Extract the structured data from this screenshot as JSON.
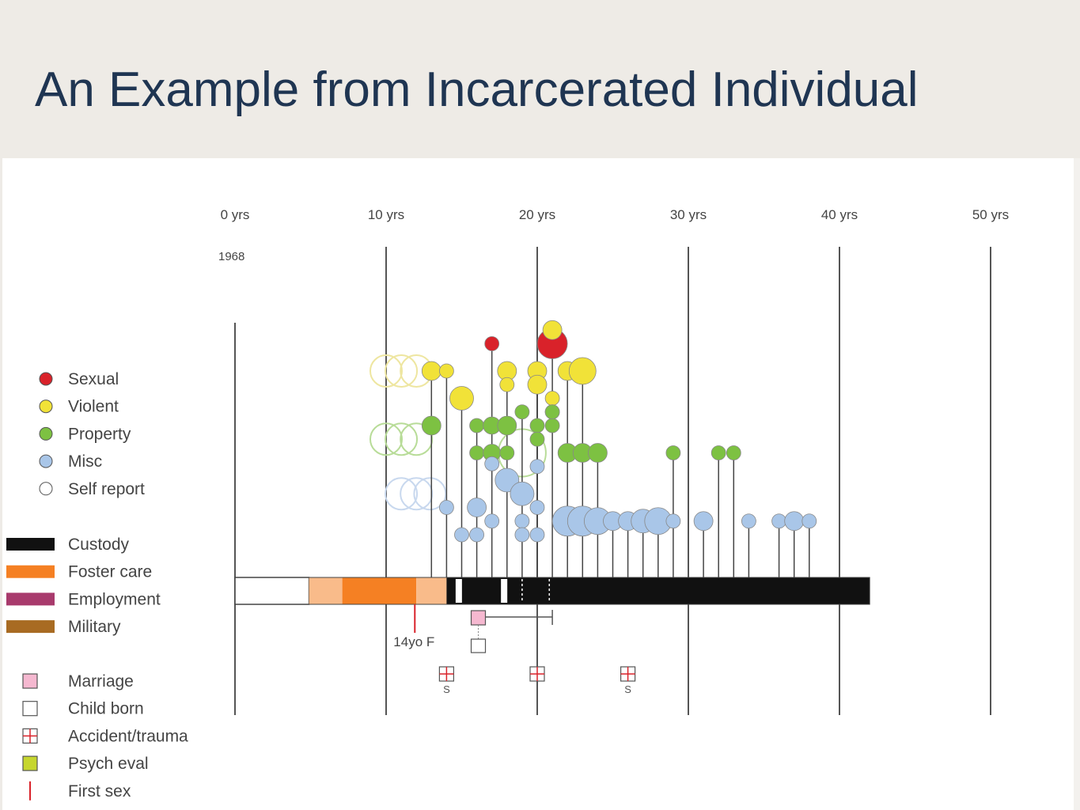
{
  "slide": {
    "title": "An Example from Incarcerated Individual"
  },
  "chart_data": {
    "type": "timeline",
    "x_ticks": [
      0,
      10,
      20,
      30,
      40,
      50
    ],
    "x_tick_labels": [
      "0 yrs",
      "10 yrs",
      "20 yrs",
      "30 yrs",
      "40 yrs",
      "50 yrs"
    ],
    "start_year_label": "1968",
    "xlim": [
      0,
      50
    ],
    "legend_placement": "left",
    "events_legend": [
      {
        "key": "sexual",
        "label": "Sexual",
        "color": "#d9222a"
      },
      {
        "key": "violent",
        "label": "Violent",
        "color": "#f1e238"
      },
      {
        "key": "property",
        "label": "Property",
        "color": "#7dc142"
      },
      {
        "key": "misc",
        "label": "Misc",
        "color": "#a9c6e8"
      },
      {
        "key": "self_report",
        "label": "Self report",
        "color": "#ffffff"
      }
    ],
    "periods_legend": [
      {
        "key": "custody",
        "label": "Custody",
        "color": "#111111"
      },
      {
        "key": "foster",
        "label": "Foster care",
        "color": "#f58023"
      },
      {
        "key": "employment",
        "label": "Employment",
        "color": "#a83a6c"
      },
      {
        "key": "military",
        "label": "Military",
        "color": "#a86b22"
      }
    ],
    "markers_legend": [
      {
        "key": "marriage",
        "label": "Marriage",
        "color": "#f5b8d0"
      },
      {
        "key": "child",
        "label": "Child born",
        "color": "#ffffff"
      },
      {
        "key": "accident",
        "label": "Accident/trauma",
        "color": "#d9222a"
      },
      {
        "key": "psych",
        "label": "Psych eval",
        "color": "#c6d62e"
      },
      {
        "key": "first_sex",
        "label": "First sex",
        "color": "#d9222a"
      }
    ],
    "periods": [
      {
        "type": "none",
        "start": 0,
        "end": 4.9
      },
      {
        "type": "foster_light",
        "start": 4.9,
        "end": 7.1
      },
      {
        "type": "foster",
        "start": 7.1,
        "end": 12.0
      },
      {
        "type": "foster_light",
        "start": 12.0,
        "end": 14.0
      },
      {
        "type": "custody",
        "start": 14.0,
        "end": 42.0
      }
    ],
    "custody_gaps": [
      14.6,
      17.6
    ],
    "custody_escapes": [
      19.0,
      20.8
    ],
    "first_sex": {
      "age": 11.9,
      "label": "14yo F"
    },
    "marriage": {
      "age": 16.1,
      "span_end": 21.0
    },
    "child_born": [
      16.1
    ],
    "accidents": [
      {
        "age": 14.0,
        "label": "S"
      },
      {
        "age": 20.0,
        "label": ""
      },
      {
        "age": 26.0,
        "label": "S"
      }
    ],
    "self_report_events": [
      {
        "type": "violent",
        "ages": [
          10.0,
          11.0,
          12.0
        ]
      },
      {
        "type": "property",
        "ages": [
          10.0,
          11.0,
          12.0
        ]
      },
      {
        "type": "misc",
        "ages": [
          11.0,
          12.0,
          12.9
        ]
      },
      {
        "type": "property",
        "ages": [
          19.0
        ]
      }
    ],
    "events": [
      {
        "age": 13.0,
        "type": "violent",
        "row": 0,
        "size": 12
      },
      {
        "age": 13.0,
        "type": "property",
        "row": 2,
        "size": 12
      },
      {
        "age": 14.0,
        "type": "violent",
        "row": 0,
        "size": 9
      },
      {
        "age": 14.0,
        "type": "misc",
        "row": 5,
        "size": 9
      },
      {
        "age": 15.0,
        "type": "violent",
        "row": 1,
        "size": 15
      },
      {
        "age": 15.0,
        "type": "misc",
        "row": 6,
        "size": 9
      },
      {
        "age": 16.0,
        "type": "property",
        "row": 2,
        "size": 9
      },
      {
        "age": 16.0,
        "type": "property",
        "row": 3,
        "size": 9
      },
      {
        "age": 16.0,
        "type": "misc",
        "row": 5,
        "size": 12
      },
      {
        "age": 16.0,
        "type": "misc",
        "row": 6,
        "size": 9
      },
      {
        "age": 17.0,
        "type": "sexual",
        "row": -1,
        "size": 9
      },
      {
        "age": 17.0,
        "type": "property",
        "row": 2,
        "size": 11
      },
      {
        "age": 17.0,
        "type": "property",
        "row": 3,
        "size": 11
      },
      {
        "age": 17.0,
        "type": "misc",
        "row": 3.4,
        "size": 9
      },
      {
        "age": 17.0,
        "type": "misc",
        "row": 5.5,
        "size": 9
      },
      {
        "age": 18.0,
        "type": "violent",
        "row": 0,
        "size": 12
      },
      {
        "age": 18.0,
        "type": "violent",
        "row": 0.5,
        "size": 9
      },
      {
        "age": 18.0,
        "type": "property",
        "row": 2,
        "size": 12
      },
      {
        "age": 18.0,
        "type": "property",
        "row": 3,
        "size": 9
      },
      {
        "age": 18.0,
        "type": "misc",
        "row": 4,
        "size": 15
      },
      {
        "age": 19.0,
        "type": "property",
        "row": 1.5,
        "size": 9
      },
      {
        "age": 19.0,
        "type": "misc",
        "row": 4.5,
        "size": 15
      },
      {
        "age": 19.0,
        "type": "misc",
        "row": 5.5,
        "size": 9
      },
      {
        "age": 19.0,
        "type": "misc",
        "row": 6,
        "size": 9
      },
      {
        "age": 20.0,
        "type": "violent",
        "row": 0,
        "size": 12
      },
      {
        "age": 20.0,
        "type": "violent",
        "row": 0.5,
        "size": 12
      },
      {
        "age": 20.0,
        "type": "property",
        "row": 2,
        "size": 9
      },
      {
        "age": 20.0,
        "type": "property",
        "row": 2.5,
        "size": 9
      },
      {
        "age": 20.0,
        "type": "misc",
        "row": 3.5,
        "size": 9
      },
      {
        "age": 20.0,
        "type": "misc",
        "row": 5,
        "size": 9
      },
      {
        "age": 20.0,
        "type": "misc",
        "row": 6,
        "size": 9
      },
      {
        "age": 21.0,
        "type": "sexual",
        "row": -1.0,
        "size": 19
      },
      {
        "age": 21.0,
        "type": "violent",
        "row": -1.5,
        "size": 12
      },
      {
        "age": 21.0,
        "type": "violent",
        "row": 1,
        "size": 9
      },
      {
        "age": 21.0,
        "type": "violent",
        "row": 1.5,
        "size": 9
      },
      {
        "age": 21.0,
        "type": "property",
        "row": 2.0,
        "size": 9
      },
      {
        "age": 21.0,
        "type": "property",
        "row": 1.5,
        "size": 9
      },
      {
        "age": 22.0,
        "type": "violent",
        "row": 0,
        "size": 12
      },
      {
        "age": 22.0,
        "type": "property",
        "row": 3,
        "size": 12
      },
      {
        "age": 22.0,
        "type": "misc",
        "row": 5.5,
        "size": 19
      },
      {
        "age": 23.0,
        "type": "violent",
        "row": 0,
        "size": 17
      },
      {
        "age": 23.0,
        "type": "property",
        "row": 3,
        "size": 12
      },
      {
        "age": 23.0,
        "type": "misc",
        "row": 5.5,
        "size": 19
      },
      {
        "age": 24.0,
        "type": "property",
        "row": 3,
        "size": 12
      },
      {
        "age": 24.0,
        "type": "misc",
        "row": 5.5,
        "size": 17
      },
      {
        "age": 25.0,
        "type": "misc",
        "row": 5.5,
        "size": 12
      },
      {
        "age": 26.0,
        "type": "misc",
        "row": 5.5,
        "size": 12
      },
      {
        "age": 27.0,
        "type": "misc",
        "row": 5.5,
        "size": 15
      },
      {
        "age": 28.0,
        "type": "misc",
        "row": 5.5,
        "size": 17
      },
      {
        "age": 29.0,
        "type": "misc",
        "row": 5.5,
        "size": 9
      },
      {
        "age": 29.0,
        "type": "property",
        "row": 3,
        "size": 9
      },
      {
        "age": 31.0,
        "type": "misc",
        "row": 5.5,
        "size": 12
      },
      {
        "age": 32.0,
        "type": "property",
        "row": 3,
        "size": 9
      },
      {
        "age": 33.0,
        "type": "property",
        "row": 3,
        "size": 9
      },
      {
        "age": 34.0,
        "type": "misc",
        "row": 5.5,
        "size": 9
      },
      {
        "age": 36.0,
        "type": "misc",
        "row": 5.5,
        "size": 9
      },
      {
        "age": 37.0,
        "type": "misc",
        "row": 5.5,
        "size": 12
      },
      {
        "age": 38.0,
        "type": "misc",
        "row": 5.5,
        "size": 9
      }
    ]
  }
}
